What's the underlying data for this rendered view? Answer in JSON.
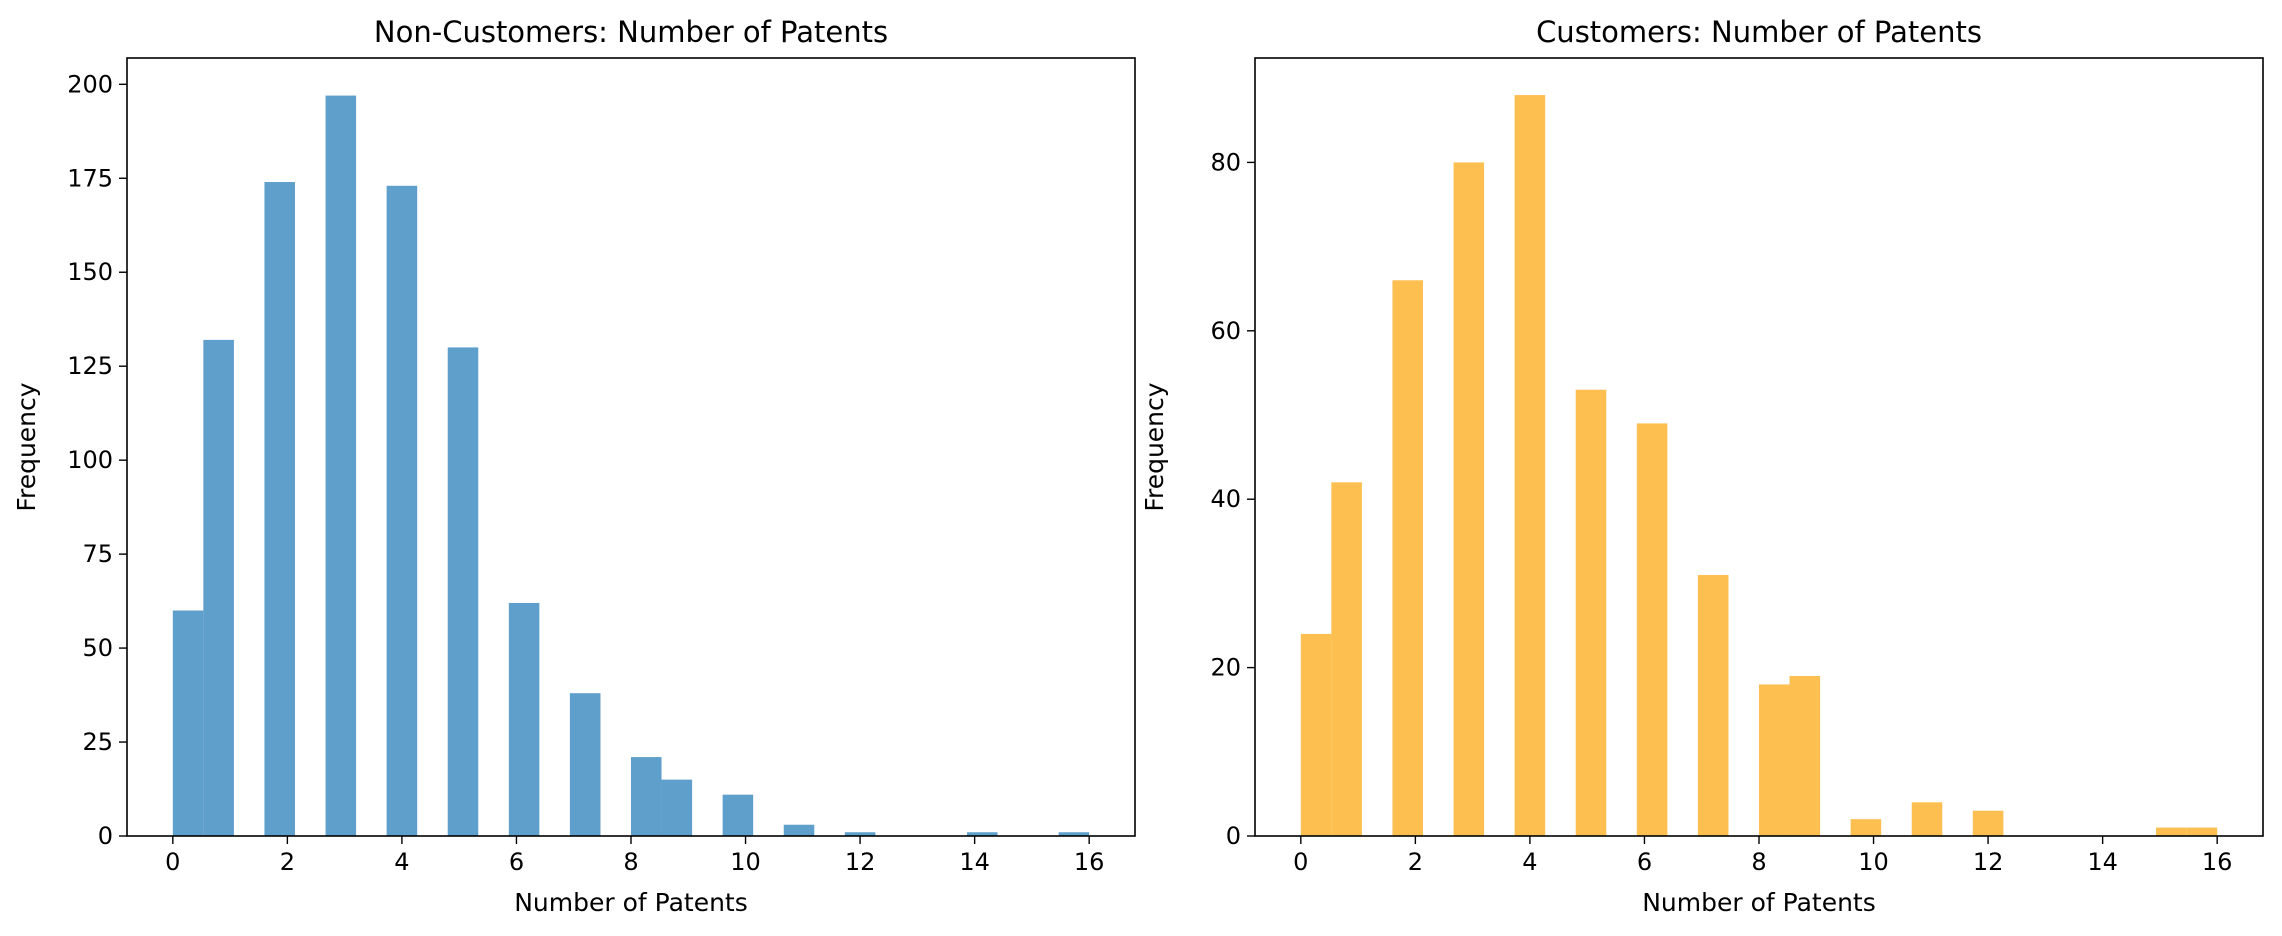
{
  "chart_data": [
    {
      "type": "bar",
      "title": "Non-Customers: Number of Patents",
      "xlabel": "Number of Patents",
      "ylabel": "Frequency",
      "color": "#5f9fcb",
      "xlim": [
        -0.8,
        16.8
      ],
      "ylim": [
        0,
        207
      ],
      "xticks": [
        0,
        2,
        4,
        6,
        8,
        10,
        12,
        14,
        16
      ],
      "yticks": [
        0,
        25,
        50,
        75,
        100,
        125,
        150,
        175,
        200
      ],
      "bin_width": 0.5333,
      "bins": [
        {
          "x0": 0.0,
          "x1": 0.533,
          "count": 60
        },
        {
          "x0": 0.533,
          "x1": 1.067,
          "count": 132
        },
        {
          "x0": 1.6,
          "x1": 2.133,
          "count": 174
        },
        {
          "x0": 2.667,
          "x1": 3.2,
          "count": 197
        },
        {
          "x0": 3.733,
          "x1": 4.267,
          "count": 173
        },
        {
          "x0": 4.8,
          "x1": 5.333,
          "count": 130
        },
        {
          "x0": 5.867,
          "x1": 6.4,
          "count": 62
        },
        {
          "x0": 6.933,
          "x1": 7.467,
          "count": 38
        },
        {
          "x0": 8.0,
          "x1": 8.533,
          "count": 21
        },
        {
          "x0": 8.533,
          "x1": 9.067,
          "count": 15
        },
        {
          "x0": 9.6,
          "x1": 10.133,
          "count": 11
        },
        {
          "x0": 10.667,
          "x1": 11.2,
          "count": 3
        },
        {
          "x0": 11.733,
          "x1": 12.267,
          "count": 1
        },
        {
          "x0": 13.867,
          "x1": 14.4,
          "count": 1
        },
        {
          "x0": 15.467,
          "x1": 16.0,
          "count": 1
        }
      ]
    },
    {
      "type": "bar",
      "title": "Customers: Number of Patents",
      "xlabel": "Number of Patents",
      "ylabel": "Frequency",
      "color": "#fdbf4f",
      "xlim": [
        -0.8,
        16.8
      ],
      "ylim": [
        0,
        92.4
      ],
      "xticks": [
        0,
        2,
        4,
        6,
        8,
        10,
        12,
        14,
        16
      ],
      "yticks": [
        0,
        20,
        40,
        60,
        80
      ],
      "bin_width": 0.5333,
      "bins": [
        {
          "x0": 0.0,
          "x1": 0.533,
          "count": 24
        },
        {
          "x0": 0.533,
          "x1": 1.067,
          "count": 42
        },
        {
          "x0": 1.6,
          "x1": 2.133,
          "count": 66
        },
        {
          "x0": 2.667,
          "x1": 3.2,
          "count": 80
        },
        {
          "x0": 3.733,
          "x1": 4.267,
          "count": 88
        },
        {
          "x0": 4.8,
          "x1": 5.333,
          "count": 53
        },
        {
          "x0": 5.867,
          "x1": 6.4,
          "count": 49
        },
        {
          "x0": 6.933,
          "x1": 7.467,
          "count": 31
        },
        {
          "x0": 8.0,
          "x1": 8.533,
          "count": 18
        },
        {
          "x0": 8.533,
          "x1": 9.067,
          "count": 19
        },
        {
          "x0": 9.6,
          "x1": 10.133,
          "count": 2
        },
        {
          "x0": 10.667,
          "x1": 11.2,
          "count": 4
        },
        {
          "x0": 11.733,
          "x1": 12.267,
          "count": 3
        },
        {
          "x0": 14.933,
          "x1": 15.467,
          "count": 1
        },
        {
          "x0": 15.467,
          "x1": 16.0,
          "count": 1
        }
      ]
    }
  ]
}
